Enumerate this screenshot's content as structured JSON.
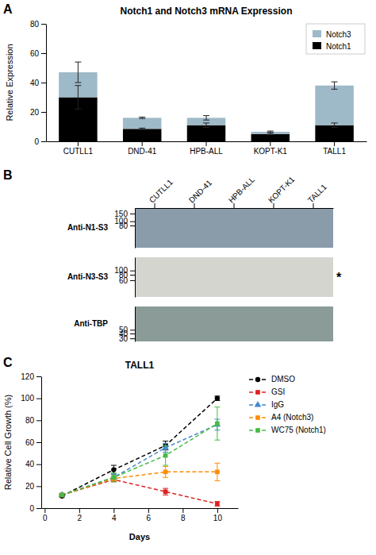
{
  "chart_data": [
    {
      "type": "bar",
      "stacked": true,
      "title": "Notch1 and Notch3 mRNA Expression",
      "annotations": [
        "A"
      ],
      "categories": [
        "CUTLL1",
        "DND-41",
        "HPB-ALL",
        "KOPT-K1",
        "TALL1"
      ],
      "series": [
        {
          "name": "Notch1",
          "color": "#000000",
          "values": [
            30,
            8.5,
            11,
            5,
            11
          ],
          "errors": [
            8,
            0.5,
            1.5,
            0.5,
            1.5
          ]
        },
        {
          "name": "Notch3",
          "color": "#9EB9C8",
          "values": [
            17,
            7.5,
            5,
            1.5,
            27
          ],
          "errors": [
            7,
            0.5,
            1.5,
            0.5,
            2.5
          ]
        }
      ],
      "ylabel": "Relative Expression",
      "ylim": [
        0,
        80
      ],
      "yticks": [
        0,
        20,
        40,
        60,
        80
      ],
      "legend": "upper right",
      "grid": false
    },
    {
      "type": "blot",
      "annotations": [
        "B"
      ],
      "ylabel": "Anti-N1-S3",
      "categories": [
        "CUTLL1",
        "DND-41",
        "HPB-ALL",
        "KOPT-K1",
        "TALL1"
      ],
      "color": "#8A9BAA",
      "log": "y",
      "ylim": [
        25,
        200
      ],
      "yticks": [
        150,
        100,
        80
      ]
    },
    {
      "type": "blot",
      "annotations": [
        "*"
      ],
      "ylabel": "Anti-N3-S3",
      "color": "#D5D5D0",
      "log": "y",
      "ylim": [
        25,
        200
      ],
      "yticks": [
        100,
        80,
        60
      ],
      "tick_labels": "y"
    },
    {
      "type": "blot",
      "ylabel": "Anti-TBP",
      "color": "#8A9B98",
      "log": "y",
      "ylim": [
        25,
        200
      ],
      "yticks": [
        50,
        40,
        30
      ],
      "tick_labels": "y"
    },
    {
      "type": "line",
      "title": "TALL1",
      "annotations": [
        "C"
      ],
      "xlabel": "Days",
      "ylabel": "Relative Cell Growth (%)",
      "x": [
        1,
        4,
        7,
        10
      ],
      "xlim": [
        -0.2,
        11.2
      ],
      "xticks": [
        0,
        2,
        4,
        6,
        8,
        10
      ],
      "ylim": [
        0,
        120
      ],
      "yticks": [
        0,
        20,
        40,
        60,
        80,
        100,
        120
      ],
      "grid": false,
      "legend": "right",
      "series": [
        {
          "name": "DMSO",
          "color": "#000000",
          "marker": "circle",
          "line_style": "dashed",
          "values": [
            11,
            35,
            57,
            100
          ],
          "errors": [
            1,
            4,
            4,
            2
          ]
        },
        {
          "name": "GSI",
          "color": "#E02020",
          "marker": "square",
          "line_style": "dashed",
          "values": [
            12,
            26,
            15,
            4
          ],
          "errors": [
            1,
            2,
            3,
            2
          ]
        },
        {
          "name": "IgG",
          "color": "#4488CC",
          "marker": "triangle",
          "line_style": "dashed",
          "values": [
            12,
            28,
            55,
            76
          ],
          "errors": [
            1,
            3,
            4,
            5
          ]
        },
        {
          "name": "A4 (Notch3)",
          "color": "#FF8C00",
          "marker": "square",
          "line_style": "dashed",
          "values": [
            12,
            27,
            33,
            33
          ],
          "errors": [
            1,
            2,
            5,
            8
          ]
        },
        {
          "name": "WC75 (Notch1)",
          "color": "#44BB44",
          "marker": "square",
          "line_style": "dashed",
          "values": [
            12,
            28,
            48,
            77
          ],
          "errors": [
            1,
            4,
            9,
            15
          ]
        }
      ]
    }
  ]
}
